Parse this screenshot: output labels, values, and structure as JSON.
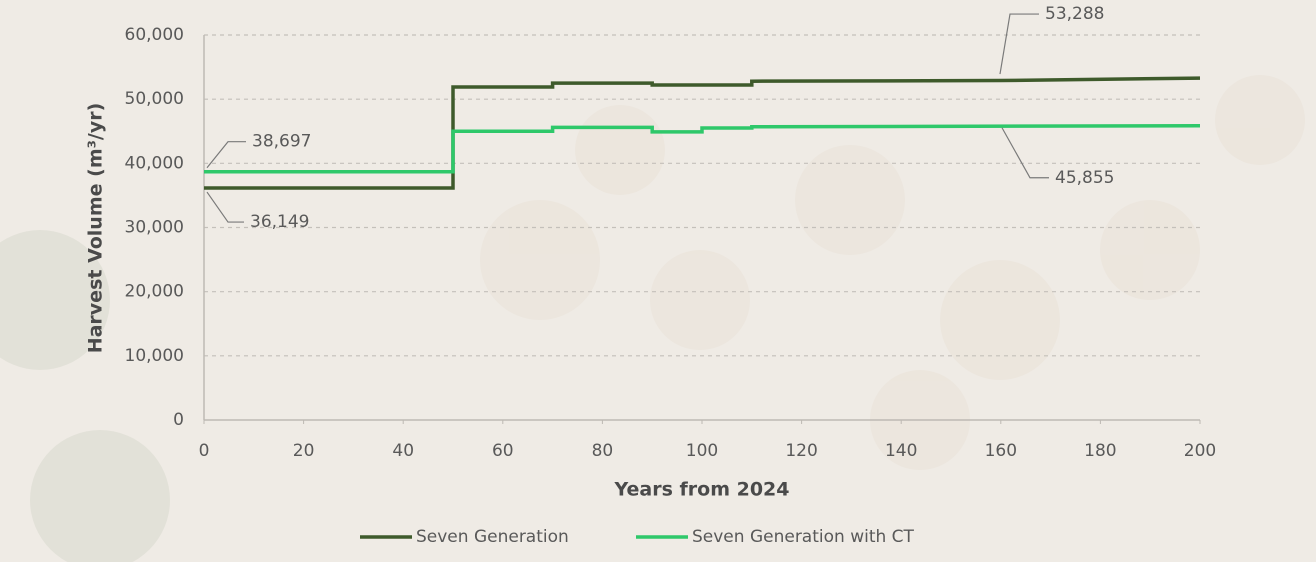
{
  "chart_data": {
    "type": "line",
    "y_label": "Harvest Volume (m³/yr)",
    "x_label": "Years from 2024",
    "xlim": [
      0,
      200
    ],
    "xticks": [
      0,
      20,
      40,
      60,
      80,
      100,
      120,
      140,
      160,
      180,
      200
    ],
    "ylim": [
      0,
      60000
    ],
    "yticks": [
      0,
      {
        "value": 10000,
        "label": "10,000"
      },
      {
        "value": 20000,
        "label": "20,000"
      },
      {
        "value": 30000,
        "label": "30,000"
      },
      {
        "value": 40000,
        "label": "40,000"
      },
      {
        "value": 50000,
        "label": "50,000"
      },
      {
        "value": 60000,
        "label": "60,000"
      }
    ],
    "grid": true,
    "legend": "bottom",
    "series": [
      {
        "name": "Seven Generation",
        "color": "#3e5a2b",
        "x": [
          0,
          50,
          50,
          70,
          70,
          90,
          90,
          110,
          110,
          160,
          200
        ],
        "values": [
          36149,
          36149,
          51900,
          51900,
          52500,
          52500,
          52200,
          52200,
          52800,
          52900,
          53288
        ],
        "value_labels": [
          "36,149",
          null,
          null,
          null,
          null,
          null,
          null,
          null,
          null,
          null,
          "53,288"
        ]
      },
      {
        "name": "Seven Generation with CT",
        "color": "#2ec86a",
        "x": [
          0,
          50,
          50,
          70,
          70,
          90,
          90,
          100,
          100,
          110,
          110,
          200
        ],
        "values": [
          38697,
          38697,
          45000,
          45000,
          45600,
          45600,
          44900,
          44900,
          45500,
          45500,
          45700,
          45855
        ],
        "value_labels": [
          "38,697",
          null,
          null,
          null,
          null,
          null,
          null,
          null,
          null,
          null,
          null,
          "45,855"
        ]
      }
    ]
  }
}
